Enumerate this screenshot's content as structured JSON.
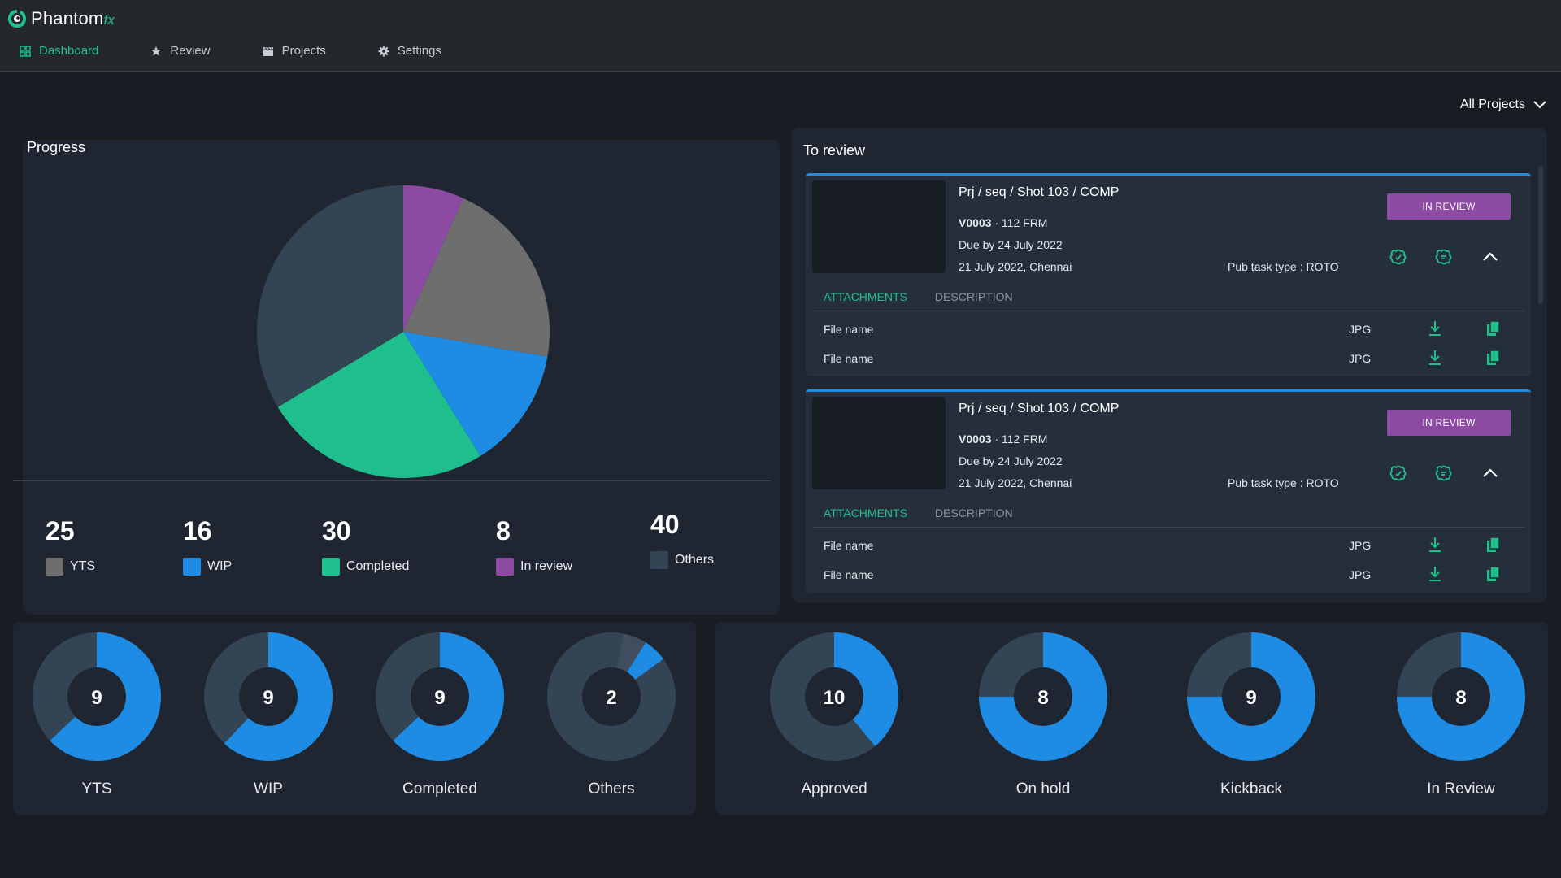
{
  "app": {
    "logo_text": "Phantom",
    "logo_suffix": "fx"
  },
  "nav": [
    {
      "label": "Dashboard",
      "icon": "dashboard-grid-icon",
      "active": true
    },
    {
      "label": "Review",
      "icon": "star-icon",
      "active": false
    },
    {
      "label": "Projects",
      "icon": "clapperboard-icon",
      "active": false
    },
    {
      "label": "Settings",
      "icon": "gear-icon",
      "active": false
    }
  ],
  "project_filter": {
    "label": "All Projects"
  },
  "progress": {
    "title": "Progress",
    "stats": [
      {
        "value": "25",
        "label": "YTS",
        "color": "#6e6e6e"
      },
      {
        "value": "16",
        "label": "WIP",
        "color": "#1e8ce4"
      },
      {
        "value": "30",
        "label": "Completed",
        "color": "#1ebf8c"
      },
      {
        "value": "8",
        "label": "In review",
        "color": "#8d4aa3"
      },
      {
        "value": "40",
        "label": "Others",
        "color": "#334455"
      }
    ]
  },
  "chart_data": {
    "type": "pie",
    "categories": [
      "In review",
      "YTS",
      "WIP",
      "Completed",
      "Others"
    ],
    "values": [
      8,
      25,
      16,
      30,
      40
    ],
    "colors": [
      "#8d4aa3",
      "#6e6e6e",
      "#1e8ce4",
      "#1ebf8c",
      "#334455"
    ]
  },
  "review": {
    "title": "To review",
    "cards": [
      {
        "title": "Prj / seq / Shot 103 / COMP",
        "version": "V0003",
        "frames": "· 112 FRM",
        "due": "Due by 24 July 2022",
        "date_location": "21 July 2022, Chennai",
        "pub_task": "Pub task type : ROTO",
        "status": "IN REVIEW",
        "tabs": [
          "ATTACHMENTS",
          "DESCRIPTION"
        ],
        "files": [
          {
            "name": "File name",
            "type": "JPG"
          },
          {
            "name": "File name",
            "type": "JPG"
          }
        ]
      },
      {
        "title": "Prj / seq / Shot 103 / COMP",
        "version": "V0003",
        "frames": "· 112 FRM",
        "due": "Due by 24 July 2022",
        "date_location": "21 July 2022, Chennai",
        "pub_task": "Pub task type : ROTO",
        "status": "IN REVIEW",
        "tabs": [
          "ATTACHMENTS",
          "DESCRIPTION"
        ],
        "files": [
          {
            "name": "File name",
            "type": "JPG"
          },
          {
            "name": "File name",
            "type": "JPG"
          }
        ]
      }
    ]
  },
  "donuts_tasks": [
    {
      "label": "YTS",
      "value": "9",
      "fill_fraction": 0.63
    },
    {
      "label": "WIP",
      "value": "9",
      "fill_fraction": 0.62
    },
    {
      "label": "Completed",
      "value": "9",
      "fill_fraction": 0.63
    },
    {
      "label": "Others",
      "value": "2",
      "fill_fraction": 0.06,
      "fill_start_fraction": 0.09,
      "thin_start_fraction": 0.03,
      "thin_end_fraction": 0.09
    }
  ],
  "donuts_review": [
    {
      "label": "Approved",
      "value": "10",
      "fill_fraction": 0.39
    },
    {
      "label": "On hold",
      "value": "8",
      "fill_fraction": 0.75
    },
    {
      "label": "Kickback",
      "value": "9",
      "fill_fraction": 0.75
    },
    {
      "label": "In Review",
      "value": "8",
      "fill_fraction": 0.75
    }
  ],
  "colors": {
    "accent": "#21c08b",
    "blue": "#1e8ce4",
    "purple": "#8d4aa3",
    "donut_track": "#334455",
    "donut_center": "#1f2631"
  }
}
